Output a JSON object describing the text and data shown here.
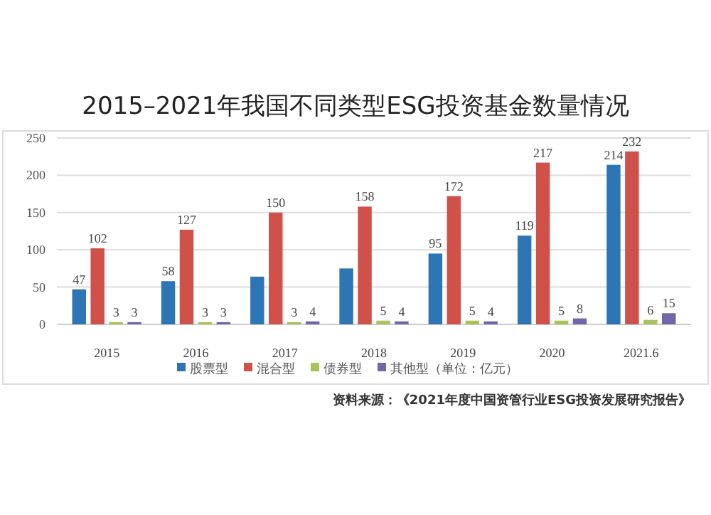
{
  "chart_data": {
    "type": "bar",
    "title": "2015–2021年我国不同类型ESG投资基金数量情况",
    "categories": [
      "2015",
      "2016",
      "2017",
      "2018",
      "2019",
      "2020",
      "2021.6"
    ],
    "series": [
      {
        "name": "股票型",
        "color": "#2e75b6",
        "values": [
          47,
          58,
          64,
          75,
          95,
          119,
          214
        ],
        "value_labels": [
          "47",
          "58",
          null,
          null,
          "95",
          "119",
          "214"
        ]
      },
      {
        "name": "混合型",
        "color": "#d0504a",
        "values": [
          102,
          127,
          150,
          158,
          172,
          217,
          232
        ],
        "value_labels": [
          "102",
          "127",
          "150",
          "158",
          "172",
          "217",
          "232"
        ]
      },
      {
        "name": "债券型",
        "color": "#a9c25a",
        "values": [
          3,
          3,
          3,
          5,
          5,
          5,
          6
        ],
        "value_labels": [
          "3",
          "3",
          "3",
          "5",
          "5",
          "5",
          "6"
        ]
      },
      {
        "name": "其他型（单位：亿元）",
        "color": "#7066a8",
        "values": [
          3,
          3,
          4,
          4,
          4,
          8,
          15
        ],
        "value_labels": [
          "3",
          "3",
          "4",
          "4",
          "4",
          "8",
          "15"
        ]
      }
    ],
    "ylim": [
      0,
      250
    ],
    "yticks": [
      0,
      50,
      100,
      150,
      200,
      250
    ],
    "grid": "y",
    "legend": "bottom",
    "annotations": [
      "资料来源：《2021年度中国资管行业ESG投资发展研究报告》"
    ]
  }
}
